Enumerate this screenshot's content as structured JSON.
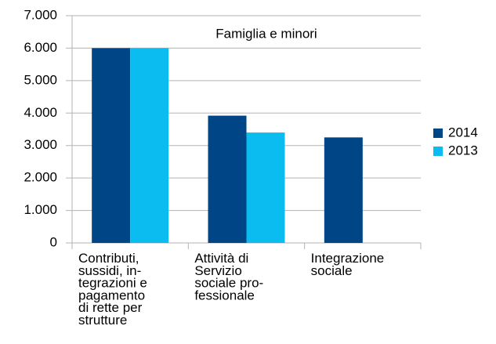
{
  "chart_data": {
    "type": "bar",
    "title": "Famiglia e minori",
    "categories": [
      [
        "Contributi,",
        "sussidi, in-",
        "tegrazioni e",
        "pagamento",
        "di rette per",
        "strutture"
      ],
      [
        "Attività di",
        "Servizio",
        "sociale pro-",
        "fessionale"
      ],
      [
        "Integrazione",
        "sociale"
      ]
    ],
    "series": [
      {
        "name": "2014",
        "color": "#004586",
        "values": [
          6000,
          3920,
          3250
        ]
      },
      {
        "name": "2013",
        "color": "#0bbcf0",
        "values": [
          6000,
          3400,
          null
        ]
      }
    ],
    "ylim": [
      0,
      7000
    ],
    "yticks": [
      0,
      {
        "value": 1000,
        "label": "1.000"
      },
      {
        "value": 2000,
        "label": "2.000"
      },
      {
        "value": 3000,
        "label": "3.000"
      },
      {
        "value": 4000,
        "label": "4.000"
      },
      {
        "value": 5000,
        "label": "5.000"
      },
      {
        "value": 6000,
        "label": "6.000"
      },
      {
        "value": 7000,
        "label": "7.000"
      }
    ],
    "grid": true,
    "legend": "right"
  }
}
